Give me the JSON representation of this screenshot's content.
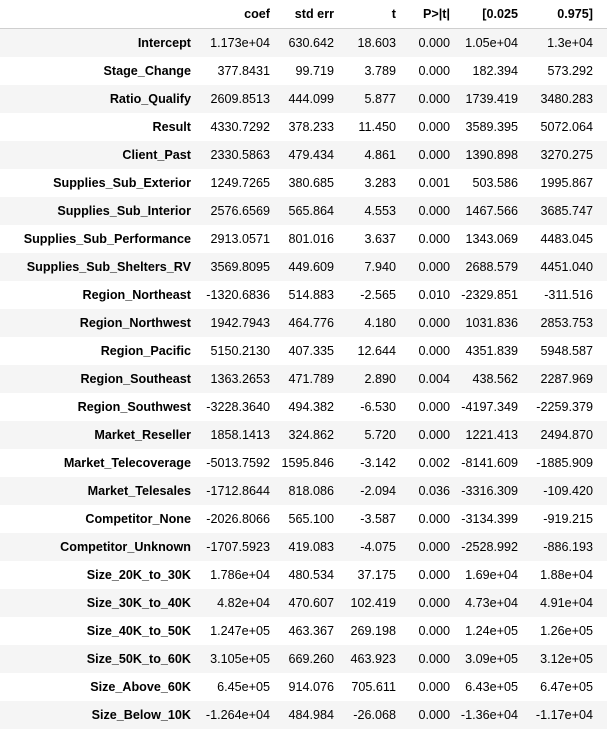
{
  "table": {
    "headers": [
      "",
      "coef",
      "std err",
      "t",
      "P>|t|",
      "[0.025",
      "0.975]"
    ],
    "rows": [
      [
        "Intercept",
        "1.173e+04",
        "630.642",
        "18.603",
        "0.000",
        "1.05e+04",
        "1.3e+04"
      ],
      [
        "Stage_Change",
        "377.8431",
        "99.719",
        "3.789",
        "0.000",
        "182.394",
        "573.292"
      ],
      [
        "Ratio_Qualify",
        "2609.8513",
        "444.099",
        "5.877",
        "0.000",
        "1739.419",
        "3480.283"
      ],
      [
        "Result",
        "4330.7292",
        "378.233",
        "11.450",
        "0.000",
        "3589.395",
        "5072.064"
      ],
      [
        "Client_Past",
        "2330.5863",
        "479.434",
        "4.861",
        "0.000",
        "1390.898",
        "3270.275"
      ],
      [
        "Supplies_Sub_Exterior",
        "1249.7265",
        "380.685",
        "3.283",
        "0.001",
        "503.586",
        "1995.867"
      ],
      [
        "Supplies_Sub_Interior",
        "2576.6569",
        "565.864",
        "4.553",
        "0.000",
        "1467.566",
        "3685.747"
      ],
      [
        "Supplies_Sub_Performance",
        "2913.0571",
        "801.016",
        "3.637",
        "0.000",
        "1343.069",
        "4483.045"
      ],
      [
        "Supplies_Sub_Shelters_RV",
        "3569.8095",
        "449.609",
        "7.940",
        "0.000",
        "2688.579",
        "4451.040"
      ],
      [
        "Region_Northeast",
        "-1320.6836",
        "514.883",
        "-2.565",
        "0.010",
        "-2329.851",
        "-311.516"
      ],
      [
        "Region_Northwest",
        "1942.7943",
        "464.776",
        "4.180",
        "0.000",
        "1031.836",
        "2853.753"
      ],
      [
        "Region_Pacific",
        "5150.2130",
        "407.335",
        "12.644",
        "0.000",
        "4351.839",
        "5948.587"
      ],
      [
        "Region_Southeast",
        "1363.2653",
        "471.789",
        "2.890",
        "0.004",
        "438.562",
        "2287.969"
      ],
      [
        "Region_Southwest",
        "-3228.3640",
        "494.382",
        "-6.530",
        "0.000",
        "-4197.349",
        "-2259.379"
      ],
      [
        "Market_Reseller",
        "1858.1413",
        "324.862",
        "5.720",
        "0.000",
        "1221.413",
        "2494.870"
      ],
      [
        "Market_Telecoverage",
        "-5013.7592",
        "1595.846",
        "-3.142",
        "0.002",
        "-8141.609",
        "-1885.909"
      ],
      [
        "Market_Telesales",
        "-1712.8644",
        "818.086",
        "-2.094",
        "0.036",
        "-3316.309",
        "-109.420"
      ],
      [
        "Competitor_None",
        "-2026.8066",
        "565.100",
        "-3.587",
        "0.000",
        "-3134.399",
        "-919.215"
      ],
      [
        "Competitor_Unknown",
        "-1707.5923",
        "419.083",
        "-4.075",
        "0.000",
        "-2528.992",
        "-886.193"
      ],
      [
        "Size_20K_to_30K",
        "1.786e+04",
        "480.534",
        "37.175",
        "0.000",
        "1.69e+04",
        "1.88e+04"
      ],
      [
        "Size_30K_to_40K",
        "4.82e+04",
        "470.607",
        "102.419",
        "0.000",
        "4.73e+04",
        "4.91e+04"
      ],
      [
        "Size_40K_to_50K",
        "1.247e+05",
        "463.367",
        "269.198",
        "0.000",
        "1.24e+05",
        "1.26e+05"
      ],
      [
        "Size_50K_to_60K",
        "3.105e+05",
        "669.260",
        "463.923",
        "0.000",
        "3.09e+05",
        "3.12e+05"
      ],
      [
        "Size_Above_60K",
        "6.45e+05",
        "914.076",
        "705.611",
        "0.000",
        "6.43e+05",
        "6.47e+05"
      ],
      [
        "Size_Below_10K",
        "-1.264e+04",
        "484.984",
        "-26.068",
        "0.000",
        "-1.36e+04",
        "-1.17e+04"
      ]
    ]
  }
}
